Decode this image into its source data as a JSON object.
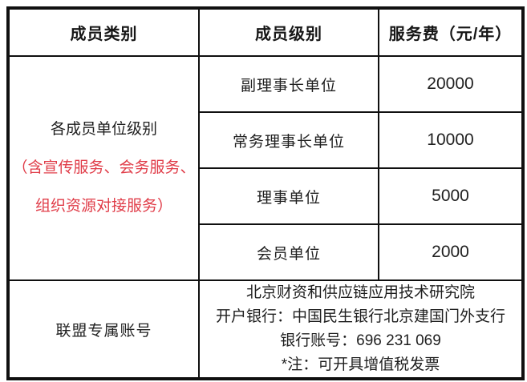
{
  "table": {
    "headers": [
      "成员类别",
      "成员级别",
      "服务费（元/年）"
    ],
    "category_cell": {
      "title": "各成员单位级别",
      "note_lines": [
        "（含宣传服务、会务服务、",
        "组织资源对接服务）"
      ]
    },
    "levels": [
      {
        "level": "副理事长单位",
        "fee": "20000"
      },
      {
        "level": "常务理事长单位",
        "fee": "10000"
      },
      {
        "level": "理事单位",
        "fee": "5000"
      },
      {
        "level": "会员单位",
        "fee": "2000"
      }
    ],
    "account": {
      "label": "联盟专属账号",
      "lines": [
        "北京财资和供应链应用技术研究院",
        "开户银行：中国民生银行北京建国门外支行",
        "银行账号：696 231 069",
        "*注：可开具增值税发票"
      ]
    }
  },
  "colors": {
    "border": "#101010",
    "text": "#1f1f1f",
    "note_red": "#e03c48"
  }
}
